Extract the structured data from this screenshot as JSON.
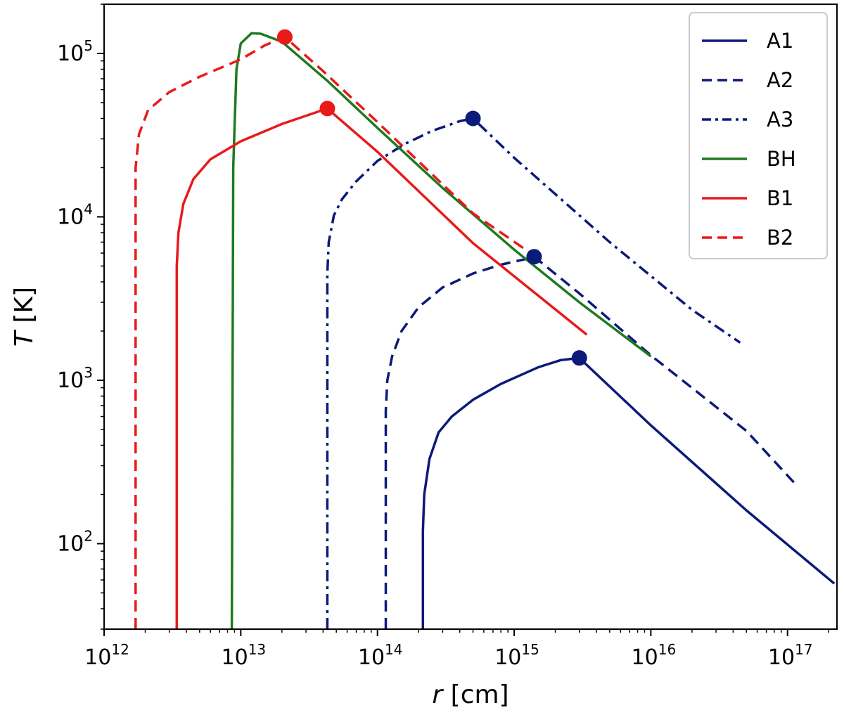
{
  "chart_data": {
    "type": "line",
    "xscale": "log",
    "yscale": "log",
    "xlim": [
      1000000000000.0,
      2.3e+17
    ],
    "ylim": [
      30,
      200000.0
    ],
    "xlabel": {
      "var": "r",
      "unit": " [cm]"
    },
    "ylabel": {
      "var": "T",
      "unit": " [K]"
    },
    "grid": false,
    "legend_position": "top-right",
    "xticks": [
      {
        "base": "10",
        "exp": "12",
        "value": 1000000000000.0
      },
      {
        "base": "10",
        "exp": "13",
        "value": 10000000000000.0
      },
      {
        "base": "10",
        "exp": "14",
        "value": 100000000000000.0
      },
      {
        "base": "10",
        "exp": "15",
        "value": 1000000000000000.0
      },
      {
        "base": "10",
        "exp": "16",
        "value": 1e+16
      },
      {
        "base": "10",
        "exp": "17",
        "value": 1e+17
      }
    ],
    "yticks": [
      {
        "base": "10",
        "exp": "2",
        "value": 100
      },
      {
        "base": "10",
        "exp": "3",
        "value": 1000
      },
      {
        "base": "10",
        "exp": "4",
        "value": 10000
      },
      {
        "base": "10",
        "exp": "5",
        "value": 100000
      }
    ],
    "series": [
      {
        "name": "A1",
        "color": "#0c1a7a",
        "style": "solid",
        "points": [
          [
            215000000000000.0,
            30
          ],
          [
            215000000000000.0,
            120
          ],
          [
            220000000000000.0,
            200
          ],
          [
            240000000000000.0,
            330
          ],
          [
            280000000000000.0,
            480
          ],
          [
            350000000000000.0,
            600
          ],
          [
            500000000000000.0,
            760
          ],
          [
            800000000000000.0,
            950
          ],
          [
            1500000000000000.0,
            1200
          ],
          [
            2200000000000000.0,
            1330
          ],
          [
            3000000000000000.0,
            1370
          ],
          [
            1e+16,
            530
          ],
          [
            5e+16,
            160
          ],
          [
            2.2e+17,
            57
          ]
        ],
        "marker": [
          3000000000000000.0,
          1370
        ]
      },
      {
        "name": "A2",
        "color": "#0c1a7a",
        "style": "dashed",
        "points": [
          [
            115000000000000.0,
            30
          ],
          [
            115000000000000.0,
            650
          ],
          [
            118000000000000.0,
            1000
          ],
          [
            128000000000000.0,
            1400
          ],
          [
            150000000000000.0,
            2000
          ],
          [
            200000000000000.0,
            2800
          ],
          [
            300000000000000.0,
            3700
          ],
          [
            500000000000000.0,
            4500
          ],
          [
            800000000000000.0,
            5100
          ],
          [
            1200000000000000.0,
            5500
          ],
          [
            1400000000000000.0,
            5700
          ],
          [
            3000000000000000.0,
            3400
          ],
          [
            1e+16,
            1420
          ],
          [
            5e+16,
            490
          ],
          [
            1.15e+17,
            230
          ]
        ],
        "marker": [
          1400000000000000.0,
          5700
        ]
      },
      {
        "name": "A3",
        "color": "#0c1a7a",
        "style": "dashdot",
        "points": [
          [
            43000000000000.0,
            30
          ],
          [
            43000000000000.0,
            4500
          ],
          [
            44000000000000.0,
            7000
          ],
          [
            48000000000000.0,
            10200
          ],
          [
            55000000000000.0,
            12800
          ],
          [
            70000000000000.0,
            16500
          ],
          [
            100000000000000.0,
            22000
          ],
          [
            160000000000000.0,
            28000
          ],
          [
            250000000000000.0,
            33500
          ],
          [
            400000000000000.0,
            38500
          ],
          [
            500000000000000.0,
            40000
          ],
          [
            1000000000000000.0,
            23000
          ],
          [
            5000000000000000.0,
            7000
          ],
          [
            2e+16,
            2700
          ],
          [
            4.5e+16,
            1700
          ]
        ],
        "marker": [
          500000000000000.0,
          40000
        ]
      },
      {
        "name": "BH",
        "color": "#1f7a1f",
        "style": "solid",
        "points": [
          [
            8600000000000.0,
            30
          ],
          [
            8800000000000.0,
            20000
          ],
          [
            9300000000000.0,
            80000
          ],
          [
            10000000000000.0,
            115000
          ],
          [
            12000000000000.0,
            133000
          ],
          [
            14000000000000.0,
            132000
          ],
          [
            20000000000000.0,
            118000
          ],
          [
            43000000000000.0,
            68000
          ],
          [
            100000000000000.0,
            35000
          ],
          [
            300000000000000.0,
            15000
          ],
          [
            1000000000000000.0,
            6300
          ],
          [
            3000000000000000.0,
            3000
          ],
          [
            1e+16,
            1400
          ]
        ],
        "marker": null
      },
      {
        "name": "B1",
        "color": "#e81a1a",
        "style": "solid",
        "points": [
          [
            3400000000000.0,
            30
          ],
          [
            3400000000000.0,
            5000
          ],
          [
            3500000000000.0,
            8000
          ],
          [
            3800000000000.0,
            12000
          ],
          [
            4500000000000.0,
            17000
          ],
          [
            6000000000000.0,
            22500
          ],
          [
            10000000000000.0,
            29000
          ],
          [
            20000000000000.0,
            37000
          ],
          [
            43000000000000.0,
            46000
          ],
          [
            100000000000000.0,
            25000
          ],
          [
            500000000000000.0,
            6900
          ],
          [
            3400000000000000.0,
            1900
          ]
        ],
        "marker": [
          43000000000000.0,
          46000
        ]
      },
      {
        "name": "B2",
        "color": "#e81a1a",
        "style": "dashed",
        "points": [
          [
            1700000000000.0,
            30
          ],
          [
            1700000000000.0,
            20000
          ],
          [
            1800000000000.0,
            32000
          ],
          [
            2100000000000.0,
            45000
          ],
          [
            3000000000000.0,
            58000
          ],
          [
            5000000000000.0,
            72000
          ],
          [
            10000000000000.0,
            92000
          ],
          [
            15000000000000.0,
            112000
          ],
          [
            21000000000000.0,
            126000
          ],
          [
            40000000000000.0,
            78000
          ],
          [
            100000000000000.0,
            38000
          ],
          [
            500000000000000.0,
            10500
          ],
          [
            1400000000000000.0,
            5800
          ]
        ],
        "marker": [
          21000000000000.0,
          126000
        ]
      }
    ]
  }
}
